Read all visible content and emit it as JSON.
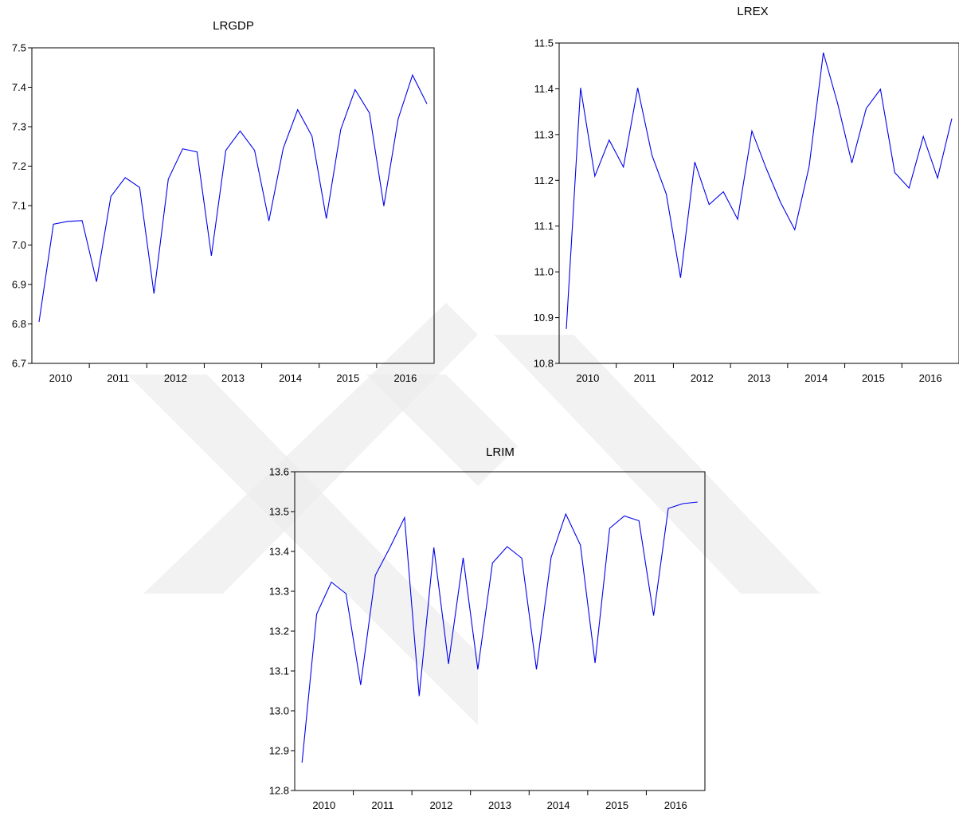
{
  "colors": {
    "line": "#0000ee",
    "axis": "#000000",
    "watermark": "#ececec"
  },
  "watermark_icon": "stylized-y-logo-watermark",
  "chart_data": [
    {
      "type": "line",
      "title": "LRGDP",
      "xlabel": "",
      "ylabel": "",
      "frequency": "quarterly",
      "x_start": "2010Q1",
      "x_ticks": [
        "2010",
        "2011",
        "2012",
        "2013",
        "2014",
        "2015",
        "2016"
      ],
      "ylim": [
        6.7,
        7.5
      ],
      "y_ticks": [
        "6.7",
        "6.8",
        "6.9",
        "7.0",
        "7.1",
        "7.2",
        "7.3",
        "7.4",
        "7.5"
      ],
      "grid": false,
      "legend": "none",
      "series": [
        {
          "values": [
            6.805,
            7.053,
            7.06,
            7.062,
            6.907,
            7.123,
            7.171,
            7.146,
            6.877,
            7.167,
            7.244,
            7.236,
            6.973,
            7.24,
            7.289,
            7.24,
            7.061,
            7.245,
            7.343,
            7.276,
            7.067,
            7.293,
            7.394,
            7.335,
            7.099,
            7.32,
            7.431,
            7.358
          ]
        }
      ]
    },
    {
      "type": "line",
      "title": "LREX",
      "xlabel": "",
      "ylabel": "",
      "frequency": "quarterly",
      "x_start": "2010Q1",
      "x_ticks": [
        "2010",
        "2011",
        "2012",
        "2013",
        "2014",
        "2015",
        "2016"
      ],
      "ylim": [
        10.8,
        11.5
      ],
      "y_ticks": [
        "10.8",
        "10.9",
        "11.0",
        "11.1",
        "11.2",
        "11.3",
        "11.4",
        "11.5"
      ],
      "grid": false,
      "legend": "none",
      "series": [
        {
          "values": [
            10.875,
            11.402,
            11.209,
            11.288,
            11.229,
            11.402,
            11.255,
            11.17,
            10.987,
            11.24,
            11.147,
            11.175,
            11.115,
            11.308,
            11.226,
            11.152,
            11.092,
            11.23,
            11.479,
            11.368,
            11.238,
            11.357,
            11.399,
            11.217,
            11.183,
            11.296,
            11.205,
            11.335
          ]
        }
      ]
    },
    {
      "type": "line",
      "title": "LRIM",
      "xlabel": "",
      "ylabel": "",
      "frequency": "quarterly",
      "x_start": "2010Q1",
      "x_ticks": [
        "2010",
        "2011",
        "2012",
        "2013",
        "2014",
        "2015",
        "2016"
      ],
      "ylim": [
        12.8,
        13.6
      ],
      "y_ticks": [
        "12.8",
        "12.9",
        "13.0",
        "13.1",
        "13.2",
        "13.3",
        "13.4",
        "13.5",
        "13.6"
      ],
      "grid": false,
      "legend": "none",
      "series": [
        {
          "values": [
            12.87,
            13.243,
            13.323,
            13.294,
            13.065,
            13.34,
            13.41,
            13.485,
            13.037,
            13.41,
            13.118,
            13.384,
            13.104,
            13.371,
            13.412,
            13.383,
            13.104,
            13.385,
            13.494,
            13.416,
            13.12,
            13.458,
            13.489,
            13.477,
            13.239,
            13.508,
            13.52,
            13.524
          ]
        }
      ]
    }
  ]
}
